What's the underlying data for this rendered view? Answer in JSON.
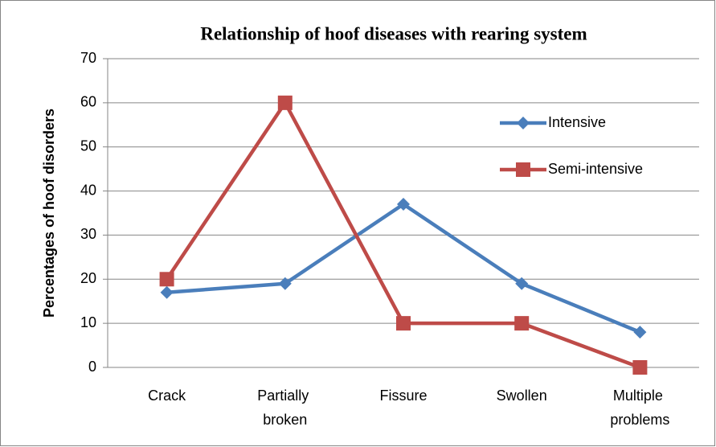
{
  "chart_data": {
    "type": "line",
    "title": "Relationship of hoof diseases with rearing system",
    "y_label": "Percentages of hoof disorders",
    "categories": [
      "Crack",
      "Partially broken",
      "Fissure",
      "Swollen",
      "Multiple problems"
    ],
    "series": [
      {
        "name": "Intensive",
        "color": "#4a7ebb",
        "marker": "diamond",
        "values": [
          17,
          19,
          37,
          19,
          8
        ]
      },
      {
        "name": "Semi-intensive",
        "color": "#be4b48",
        "marker": "square",
        "values": [
          20,
          60,
          10,
          10,
          0
        ]
      }
    ],
    "ylim": [
      0,
      70
    ],
    "yticks": [
      0,
      10,
      20,
      30,
      40,
      50,
      60,
      70
    ],
    "grid": true,
    "legend": "right"
  }
}
